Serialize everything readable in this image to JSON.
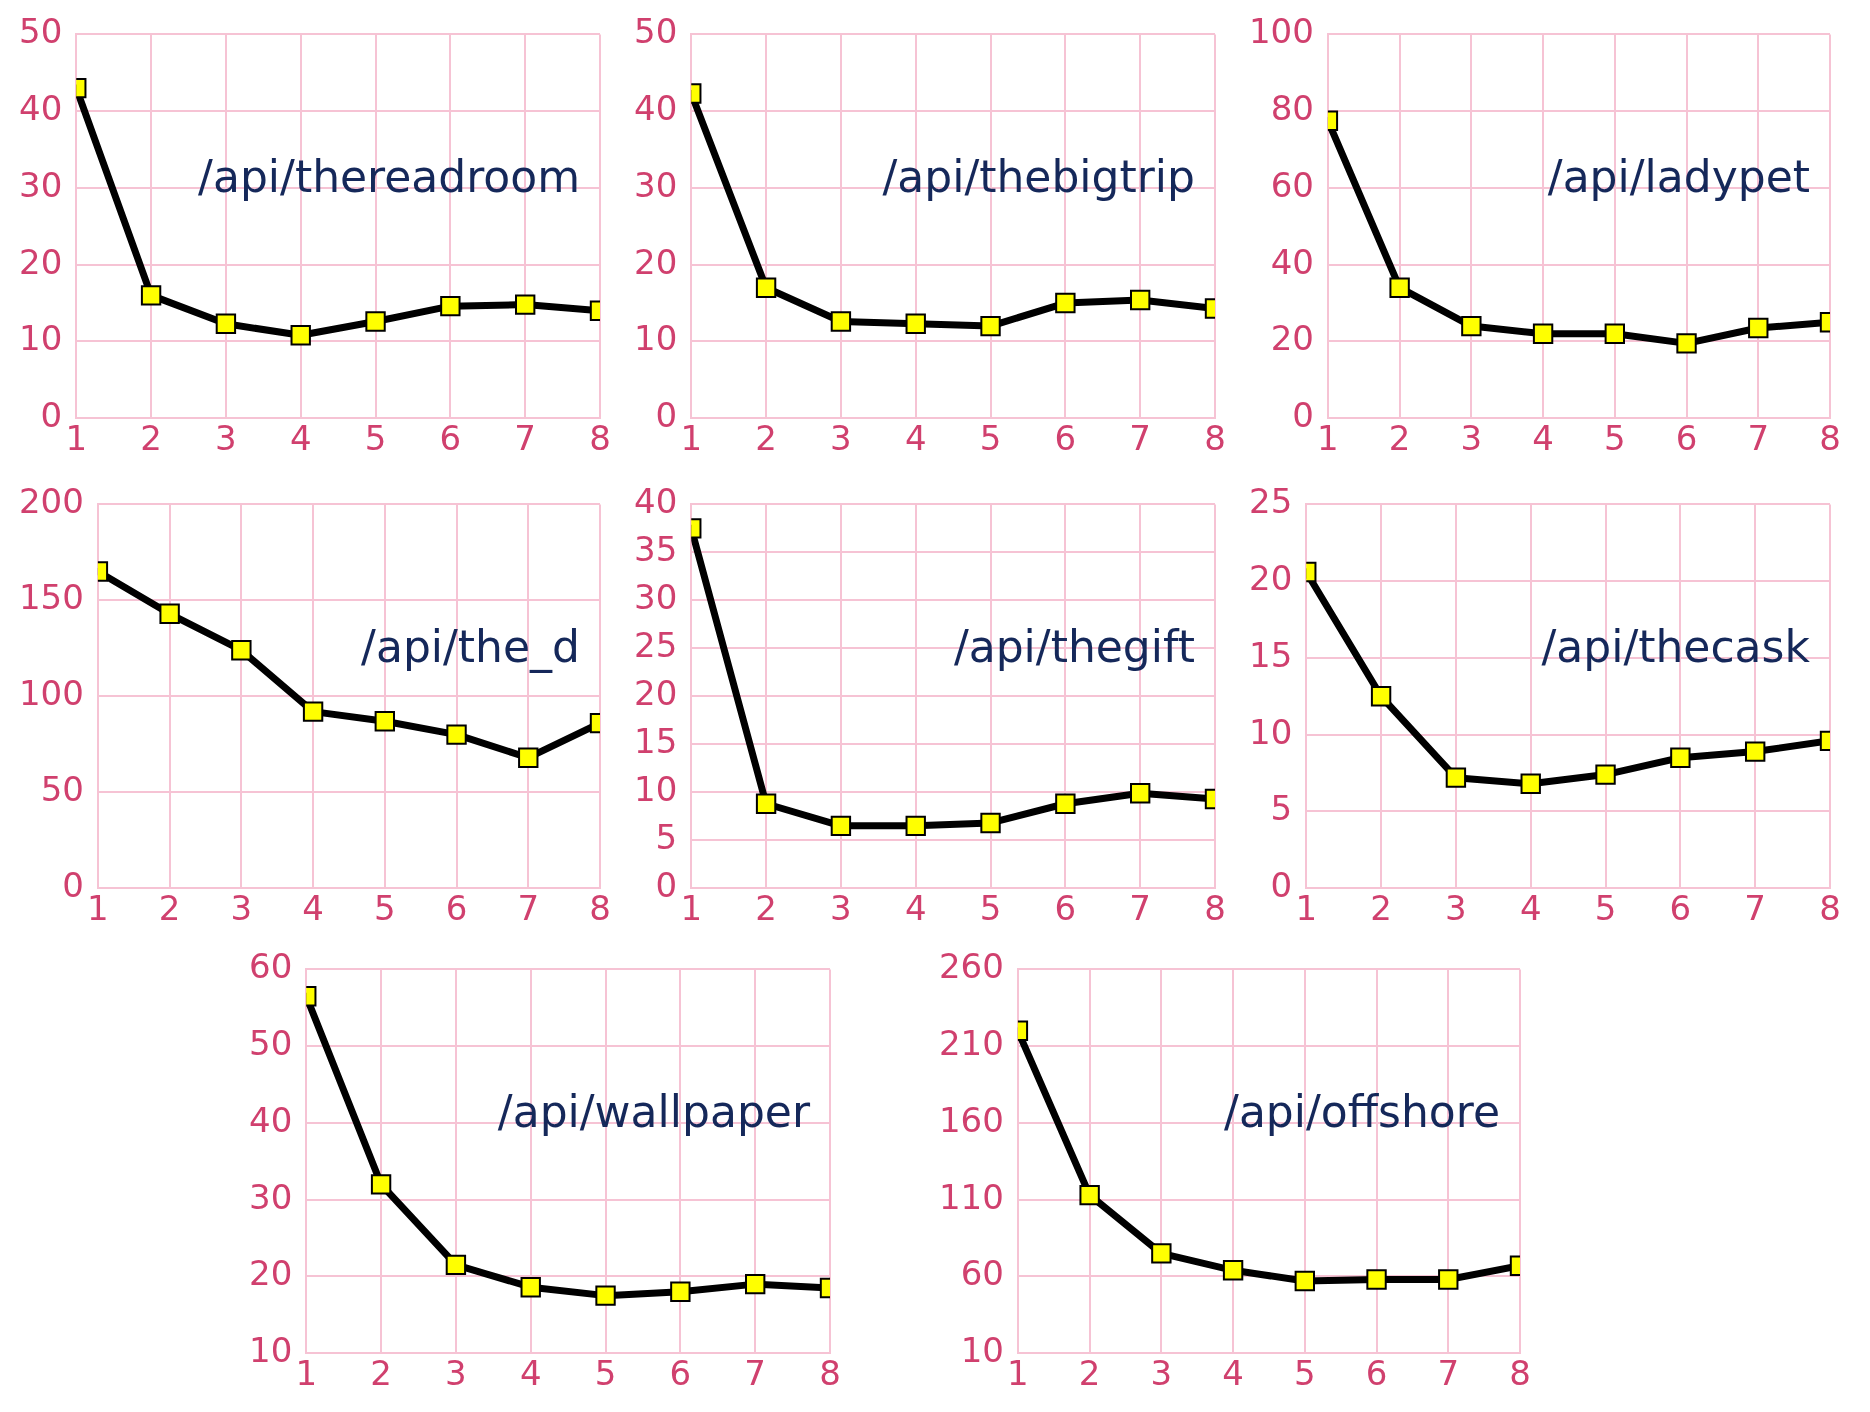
{
  "chart_data": [
    {
      "type": "line",
      "x": [
        1,
        2,
        3,
        4,
        5,
        6,
        7,
        8
      ],
      "xlim": [
        1,
        8
      ],
      "xticks": [
        1,
        2,
        3,
        4,
        5,
        6,
        7,
        8
      ],
      "ylim": [
        0,
        50
      ],
      "yticks": [
        0,
        10,
        20,
        30,
        40,
        50
      ],
      "grid": true,
      "marker": "square",
      "series": [
        {
          "color": "#000000",
          "values": [
            43,
            16,
            12.3,
            10.8,
            12.6,
            14.6,
            14.8,
            14
          ]
        }
      ],
      "annotations": [
        "/api/thereadroom"
      ]
    },
    {
      "type": "line",
      "x": [
        1,
        2,
        3,
        4,
        5,
        6,
        7,
        8
      ],
      "xlim": [
        1,
        8
      ],
      "xticks": [
        1,
        2,
        3,
        4,
        5,
        6,
        7,
        8
      ],
      "ylim": [
        0,
        50
      ],
      "yticks": [
        0,
        10,
        20,
        30,
        40,
        50
      ],
      "grid": true,
      "marker": "square",
      "series": [
        {
          "color": "#000000",
          "values": [
            42.3,
            17,
            12.6,
            12.3,
            12,
            15,
            15.4,
            14.3
          ]
        }
      ],
      "annotations": [
        "/api/thebigtrip"
      ]
    },
    {
      "type": "line",
      "x": [
        1,
        2,
        3,
        4,
        5,
        6,
        7,
        8
      ],
      "xlim": [
        1,
        8
      ],
      "xticks": [
        1,
        2,
        3,
        4,
        5,
        6,
        7,
        8
      ],
      "ylim": [
        0,
        100
      ],
      "yticks": [
        0,
        20,
        40,
        60,
        80,
        100
      ],
      "grid": true,
      "marker": "square",
      "series": [
        {
          "color": "#000000",
          "values": [
            77.5,
            34,
            24,
            22,
            22,
            19.5,
            23.5,
            25
          ]
        }
      ],
      "annotations": [
        "/api/ladypet"
      ]
    },
    {
      "type": "line",
      "x": [
        1,
        2,
        3,
        4,
        5,
        6,
        7,
        8
      ],
      "xlim": [
        1,
        8
      ],
      "xticks": [
        1,
        2,
        3,
        4,
        5,
        6,
        7,
        8
      ],
      "ylim": [
        0,
        200
      ],
      "yticks": [
        0,
        50,
        100,
        150,
        200
      ],
      "grid": true,
      "marker": "square",
      "series": [
        {
          "color": "#000000",
          "values": [
            165,
            143,
            124,
            92,
            87,
            80,
            68,
            86
          ]
        }
      ],
      "annotations": [
        "/api/the_d"
      ]
    },
    {
      "type": "line",
      "x": [
        1,
        2,
        3,
        4,
        5,
        6,
        7,
        8
      ],
      "xlim": [
        1,
        8
      ],
      "xticks": [
        1,
        2,
        3,
        4,
        5,
        6,
        7,
        8
      ],
      "ylim": [
        0,
        40
      ],
      "yticks": [
        0,
        5,
        10,
        15,
        20,
        25,
        30,
        35,
        40
      ],
      "grid": true,
      "marker": "square",
      "series": [
        {
          "color": "#000000",
          "values": [
            37.5,
            8.8,
            6.5,
            6.5,
            6.8,
            8.8,
            9.9,
            9.3
          ]
        }
      ],
      "annotations": [
        "/api/thegift"
      ]
    },
    {
      "type": "line",
      "x": [
        1,
        2,
        3,
        4,
        5,
        6,
        7,
        8
      ],
      "xlim": [
        1,
        8
      ],
      "xticks": [
        1,
        2,
        3,
        4,
        5,
        6,
        7,
        8
      ],
      "ylim": [
        0,
        25
      ],
      "yticks": [
        0,
        5,
        10,
        15,
        20,
        25
      ],
      "grid": true,
      "marker": "square",
      "series": [
        {
          "color": "#000000",
          "values": [
            20.6,
            12.5,
            7.2,
            6.8,
            7.4,
            8.5,
            8.9,
            9.6
          ]
        }
      ],
      "annotations": [
        "/api/thecask"
      ]
    },
    {
      "type": "line",
      "x": [
        1,
        2,
        3,
        4,
        5,
        6,
        7,
        8
      ],
      "xlim": [
        1,
        8
      ],
      "xticks": [
        1,
        2,
        3,
        4,
        5,
        6,
        7,
        8
      ],
      "ylim": [
        10,
        60
      ],
      "yticks": [
        10,
        20,
        30,
        40,
        50,
        60
      ],
      "grid": true,
      "marker": "square",
      "series": [
        {
          "color": "#000000",
          "values": [
            56.5,
            32,
            21.5,
            18.6,
            17.5,
            18,
            19,
            18.5
          ]
        }
      ],
      "annotations": [
        "/api/wallpaper"
      ]
    },
    {
      "type": "line",
      "x": [
        1,
        2,
        3,
        4,
        5,
        6,
        7,
        8
      ],
      "xlim": [
        1,
        8
      ],
      "xticks": [
        1,
        2,
        3,
        4,
        5,
        6,
        7,
        8
      ],
      "ylim": [
        10,
        260
      ],
      "yticks": [
        10,
        60,
        110,
        160,
        210,
        260
      ],
      "grid": true,
      "marker": "square",
      "series": [
        {
          "color": "#000000",
          "values": [
            220,
            113,
            75,
            64,
            57,
            58,
            58,
            67
          ]
        }
      ],
      "annotations": [
        "/api/offshore"
      ]
    }
  ]
}
